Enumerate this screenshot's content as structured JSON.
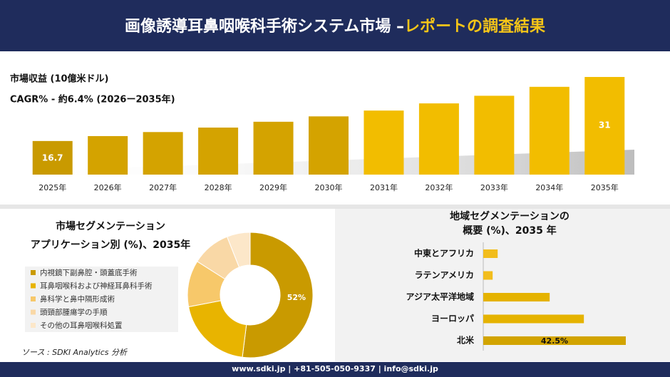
{
  "header": {
    "title_main": "画像誘導耳鼻咽喉科手術システム市場 –",
    "title_highlight": "レポートの調査結果"
  },
  "chart_data": [
    {
      "type": "bar",
      "subtitle": [
        "市場収益 (10億米ドル)",
        "CAGR% - 約6.4% (2026ー2035年)"
      ],
      "categories": [
        "2025年",
        "2026年",
        "2027年",
        "2028年",
        "2029年",
        "2030年",
        "2031年",
        "2032年",
        "2033年",
        "2034年",
        "2035年"
      ],
      "values": [
        16.7,
        17.8,
        18.7,
        19.7,
        21.0,
        22.2,
        23.5,
        25.1,
        26.8,
        28.8,
        31
      ],
      "value_labels": [
        "16.7",
        null,
        null,
        null,
        null,
        null,
        null,
        null,
        null,
        null,
        "31"
      ],
      "color": "#d4a300",
      "ylim": [
        9.2,
        31.5
      ]
    },
    {
      "type": "pie",
      "title": [
        "市場セグメンテーション",
        "アプリケーション別 (%)、2035年"
      ],
      "categories": [
        "内視鏡下副鼻腔・頭蓋底手術",
        "耳鼻咽喉科および神経耳鼻科手術",
        "鼻科学と鼻中隔形成術",
        "頭頸部腫瘍学の手順",
        "その他の耳鼻咽喉科処置"
      ],
      "values": [
        52,
        20,
        12,
        10,
        6
      ],
      "value_labels": [
        "52%",
        null,
        null,
        null,
        null
      ],
      "colors": [
        "#c99a00",
        "#e8b400",
        "#f7c86a",
        "#f9d8a6",
        "#fce7c9"
      ]
    },
    {
      "type": "hbar",
      "title": [
        "地域セグメンテーションの",
        "概要 (%)、2035 年"
      ],
      "categories": [
        "中東とアフリカ",
        "ラテンアメリカ",
        "アジア太平洋地域",
        "ヨーロッパ",
        "北米"
      ],
      "values": [
        4.3,
        2.8,
        19.8,
        30.0,
        42.5
      ],
      "value_labels": [
        null,
        null,
        null,
        null,
        "42.5%"
      ],
      "colors": [
        "#f2bd1c",
        "#f2bd1c",
        "#e5b300",
        "#e5b300",
        "#d2a400"
      ],
      "xlim": [
        0,
        45
      ]
    }
  ],
  "source": "ソース : SDKI Analytics 分析",
  "footer": "www.sdki.jp | +81-505-050-9337 | info@sdki.jp"
}
